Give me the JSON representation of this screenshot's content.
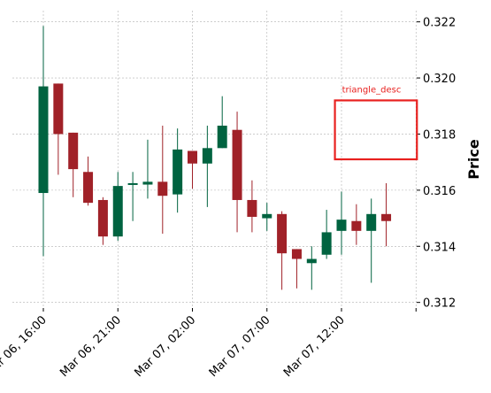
{
  "chart_data": {
    "type": "candlestick",
    "title": "",
    "xlabel": "",
    "ylabel": "Price",
    "ylim": [
      0.3118,
      0.3224
    ],
    "yticks": [
      0.312,
      0.314,
      0.316,
      0.318,
      0.32,
      0.322
    ],
    "ytick_labels": [
      "0.312",
      "0.314",
      "0.316",
      "0.318",
      "0.320",
      "0.322"
    ],
    "xticks": [
      {
        "index": 0,
        "label": "Mar 06, 16:00"
      },
      {
        "index": 5,
        "label": "Mar 06, 21:00"
      },
      {
        "index": 10,
        "label": "Mar 07, 02:00"
      },
      {
        "index": 15,
        "label": "Mar 07, 07:00"
      },
      {
        "index": 20,
        "label": "Mar 07, 12:00"
      }
    ],
    "grid": true,
    "y_axis_side": "right",
    "colors": {
      "up": "#006340",
      "down": "#a02128",
      "annotation": "#e8211f",
      "grid": "#b0b0b0"
    },
    "candles": [
      {
        "time": "Mar 06, 16:00",
        "open": 0.3159,
        "high": 0.32185,
        "low": 0.31365,
        "close": 0.3197
      },
      {
        "time": "Mar 06, 17:00",
        "open": 0.3198,
        "high": 0.3198,
        "low": 0.31655,
        "close": 0.318
      },
      {
        "time": "Mar 06, 18:00",
        "open": 0.31805,
        "high": 0.31805,
        "low": 0.31575,
        "close": 0.31675
      },
      {
        "time": "Mar 06, 19:00",
        "open": 0.31665,
        "high": 0.3172,
        "low": 0.31545,
        "close": 0.31555
      },
      {
        "time": "Mar 06, 20:00",
        "open": 0.31565,
        "high": 0.31575,
        "low": 0.31405,
        "close": 0.31435
      },
      {
        "time": "Mar 06, 21:00",
        "open": 0.31435,
        "high": 0.31665,
        "low": 0.3142,
        "close": 0.31615
      },
      {
        "time": "Mar 06, 22:00",
        "open": 0.31625,
        "high": 0.31665,
        "low": 0.3149,
        "close": 0.31625
      },
      {
        "time": "Mar 06, 23:00",
        "open": 0.3162,
        "high": 0.3178,
        "low": 0.3157,
        "close": 0.3163
      },
      {
        "time": "Mar 07, 00:00",
        "open": 0.3163,
        "high": 0.3183,
        "low": 0.31445,
        "close": 0.3158
      },
      {
        "time": "Mar 07, 01:00",
        "open": 0.31585,
        "high": 0.3182,
        "low": 0.3152,
        "close": 0.31745
      },
      {
        "time": "Mar 07, 02:00",
        "open": 0.3174,
        "high": 0.3174,
        "low": 0.31605,
        "close": 0.31695
      },
      {
        "time": "Mar 07, 03:00",
        "open": 0.31695,
        "high": 0.3183,
        "low": 0.3154,
        "close": 0.3175
      },
      {
        "time": "Mar 07, 04:00",
        "open": 0.3175,
        "high": 0.31935,
        "low": 0.3175,
        "close": 0.3183
      },
      {
        "time": "Mar 07, 05:00",
        "open": 0.31815,
        "high": 0.3188,
        "low": 0.3145,
        "close": 0.31565
      },
      {
        "time": "Mar 07, 06:00",
        "open": 0.31565,
        "high": 0.31635,
        "low": 0.3145,
        "close": 0.31505
      },
      {
        "time": "Mar 07, 07:00",
        "open": 0.315,
        "high": 0.31555,
        "low": 0.31455,
        "close": 0.31515
      },
      {
        "time": "Mar 07, 08:00",
        "open": 0.31515,
        "high": 0.31525,
        "low": 0.31245,
        "close": 0.31375
      },
      {
        "time": "Mar 07, 09:00",
        "open": 0.3139,
        "high": 0.3139,
        "low": 0.3125,
        "close": 0.31355
      },
      {
        "time": "Mar 07, 10:00",
        "open": 0.3134,
        "high": 0.314,
        "low": 0.31245,
        "close": 0.31355
      },
      {
        "time": "Mar 07, 11:00",
        "open": 0.3137,
        "high": 0.3153,
        "low": 0.31355,
        "close": 0.3145
      },
      {
        "time": "Mar 07, 12:00",
        "open": 0.31455,
        "high": 0.31595,
        "low": 0.3137,
        "close": 0.31495
      },
      {
        "time": "Mar 07, 13:00",
        "open": 0.3149,
        "high": 0.3155,
        "low": 0.31405,
        "close": 0.31455
      },
      {
        "time": "Mar 07, 14:00",
        "open": 0.31455,
        "high": 0.3157,
        "low": 0.3127,
        "close": 0.31515
      },
      {
        "time": "Mar 07, 15:00",
        "open": 0.31515,
        "high": 0.31625,
        "low": 0.314,
        "close": 0.3149
      }
    ],
    "annotations": [
      {
        "type": "rectangle",
        "label": "triangle_desc",
        "x_start": 20,
        "x_end": 25,
        "y_low": 0.3171,
        "y_high": 0.3192
      }
    ]
  }
}
